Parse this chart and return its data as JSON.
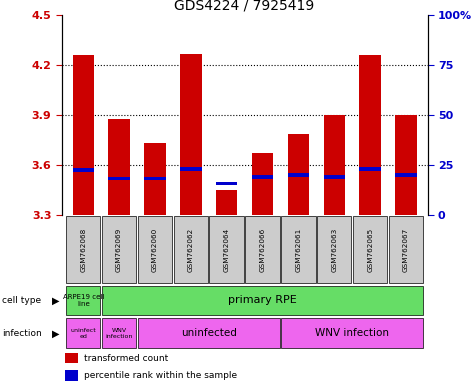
{
  "title": "GDS4224 / 7925419",
  "samples": [
    "GSM762068",
    "GSM762069",
    "GSM762060",
    "GSM762062",
    "GSM762064",
    "GSM762066",
    "GSM762061",
    "GSM762063",
    "GSM762065",
    "GSM762067"
  ],
  "red_values": [
    4.26,
    3.88,
    3.73,
    4.27,
    3.45,
    3.67,
    3.79,
    3.9,
    4.26,
    3.9
  ],
  "blue_values": [
    3.57,
    3.52,
    3.52,
    3.575,
    3.49,
    3.53,
    3.54,
    3.53,
    3.575,
    3.54
  ],
  "ymin": 3.3,
  "ymax": 4.5,
  "yticks": [
    3.3,
    3.6,
    3.9,
    4.2,
    4.5
  ],
  "right_yticks": [
    0,
    25,
    50,
    75,
    100
  ],
  "right_ytick_labels": [
    "0",
    "25",
    "50",
    "75",
    "100%"
  ],
  "bar_color": "#cc0000",
  "blue_color": "#0000cc",
  "green_color": "#66dd66",
  "pink_color": "#ee66ee",
  "gray_color": "#cccccc",
  "legend_red_label": "transformed count",
  "legend_blue_label": "percentile rank within the sample",
  "background_color": "#ffffff",
  "tick_color_left": "#cc0000",
  "tick_color_right": "#0000cc"
}
